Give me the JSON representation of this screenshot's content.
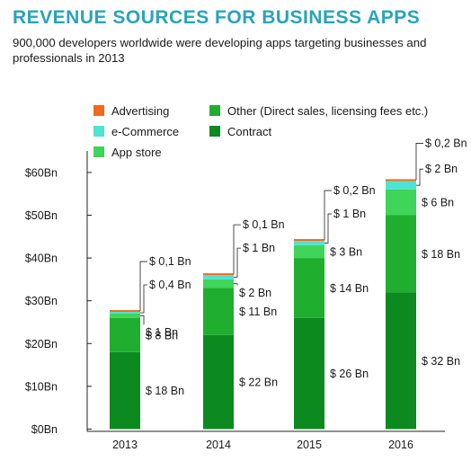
{
  "header": {
    "title": "REVENUE SOURCES FOR BUSINESS APPS",
    "subtitle": "900,000 developers worldwide were developing apps targeting businesses and professionals in 2013"
  },
  "colors": {
    "title": "#2aa3b8",
    "Contract": "#0d8a1f",
    "Other (Direct sales, licensing fees etc.)": "#1fae2e",
    "App store": "#3fd45a",
    "e-Commerce": "#4fe3d2",
    "Advertising": "#f26a1b"
  },
  "chart_data": {
    "type": "bar",
    "stacked": true,
    "categories": [
      "2013",
      "2014",
      "2015",
      "2016"
    ],
    "series": [
      {
        "name": "Contract",
        "values": [
          18,
          22,
          26,
          32
        ],
        "labels": [
          "$ 18 Bn",
          "$ 22 Bn",
          "$ 26 Bn",
          "$ 32 Bn"
        ]
      },
      {
        "name": "Other (Direct sales, licensing fees etc.)",
        "values": [
          8,
          11,
          14,
          18
        ],
        "labels": [
          "$ 8 Bn",
          "$ 11 Bn",
          "$ 14 Bn",
          "$ 18 Bn"
        ]
      },
      {
        "name": "App store",
        "values": [
          1,
          2,
          3,
          6
        ],
        "labels": [
          "$ 1 Bn",
          "$ 2 Bn",
          "$ 3 Bn",
          "$ 6 Bn"
        ]
      },
      {
        "name": "e-Commerce",
        "values": [
          0.4,
          1,
          1,
          2
        ],
        "labels": [
          "$ 0,4 Bn",
          "$ 1 Bn",
          "$ 1 Bn",
          "$ 2 Bn"
        ]
      },
      {
        "name": "Advertising",
        "values": [
          0.1,
          0.1,
          0.2,
          0.2
        ],
        "labels": [
          "$ 0,1 Bn",
          "$ 0,1 Bn",
          "$ 0,2 Bn",
          "$ 0,2 Bn"
        ]
      }
    ],
    "legend_order": [
      "Advertising",
      "e-Commerce",
      "App store",
      "Other (Direct sales, licensing fees etc.)",
      "Contract"
    ],
    "legend_position": "top",
    "yticks": [
      "$0Bn",
      "$10Bn",
      "$20Bn",
      "$30Bn",
      "$40Bn",
      "$50Bn",
      "$60Bn"
    ],
    "ylim": [
      0,
      65
    ],
    "grid": false
  }
}
